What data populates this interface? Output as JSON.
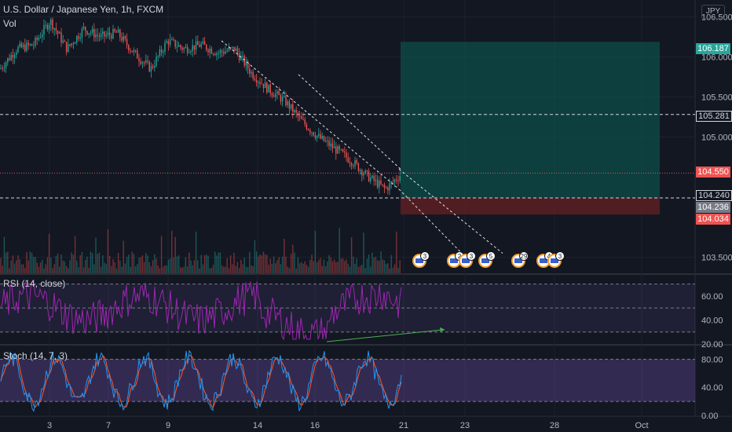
{
  "header": {
    "symbol_title": "U.S. Dollar / Japanese Yen, 1h, FXCM",
    "vol_label": "Vol",
    "currency": "JPY"
  },
  "price_axis": {
    "ticks": [
      "106.500",
      "106.000",
      "105.500",
      "105.000",
      "103.500"
    ],
    "tags": {
      "target": "106.187",
      "resistance": "105.281",
      "last": "104.550",
      "entry": "104.240",
      "current": "104.236",
      "stop": "104.034"
    }
  },
  "rsi": {
    "label": "RSI (14, close)",
    "ticks": [
      "60.00",
      "40.00",
      "20.00"
    ]
  },
  "stoch": {
    "label": "Stoch (14, 7, 3)",
    "ticks": [
      "80.00",
      "40.00",
      "0.00"
    ]
  },
  "time_axis": {
    "labels": [
      "3",
      "7",
      "9",
      "14",
      "16",
      "21",
      "23",
      "28",
      "Oct"
    ]
  },
  "events": [
    {
      "count": "3"
    },
    {
      "count": "2"
    },
    {
      "count": "3"
    },
    {
      "count": "5"
    },
    {
      "count": "29"
    },
    {
      "count": "4"
    },
    {
      "count": "3"
    }
  ],
  "colors": {
    "background": "#131722",
    "up": "#26a69a",
    "down": "#ef5350",
    "rsi": "#9c27b0",
    "stoch_k": "#2196f3",
    "stoch_d": "#ff5722",
    "target_zone": "#0d4d4a",
    "stop_zone": "#5c1f23",
    "trend_arrow": "#4caf50"
  },
  "chart_data": {
    "type": "candlestick",
    "symbol": "USD/JPY",
    "interval": "1h",
    "price_range": [
      103.3,
      106.65
    ],
    "levels": {
      "target": 106.187,
      "resistance": 105.281,
      "entry": 104.24,
      "stop": 104.034,
      "last": 104.55
    },
    "price_path": [
      {
        "x": 0,
        "y": 105.85
      },
      {
        "x": 1,
        "y": 106.1
      },
      {
        "x": 2,
        "y": 106.15
      },
      {
        "x": 3,
        "y": 106.45
      },
      {
        "x": 4,
        "y": 106.1
      },
      {
        "x": 5,
        "y": 106.35
      },
      {
        "x": 6,
        "y": 106.25
      },
      {
        "x": 7,
        "y": 106.3
      },
      {
        "x": 8,
        "y": 106.05
      },
      {
        "x": 9,
        "y": 105.85
      },
      {
        "x": 10,
        "y": 106.2
      },
      {
        "x": 11,
        "y": 106.1
      },
      {
        "x": 12,
        "y": 106.15
      },
      {
        "x": 13,
        "y": 106.05
      },
      {
        "x": 14,
        "y": 106.1
      },
      {
        "x": 15,
        "y": 105.8
      },
      {
        "x": 16,
        "y": 105.6
      },
      {
        "x": 17,
        "y": 105.45
      },
      {
        "x": 18,
        "y": 105.2
      },
      {
        "x": 19,
        "y": 105.0
      },
      {
        "x": 20,
        "y": 104.85
      },
      {
        "x": 21,
        "y": 104.7
      },
      {
        "x": 22,
        "y": 104.5
      },
      {
        "x": 23,
        "y": 104.35
      },
      {
        "x": 24,
        "y": 104.55
      }
    ],
    "rsi_levels": [
      70,
      50,
      30
    ],
    "rsi_range": [
      20,
      75
    ],
    "stoch_levels": [
      80,
      20
    ],
    "stoch_range": [
      0,
      95
    ],
    "rsi_divergence": {
      "from": 22,
      "to": 32
    }
  }
}
